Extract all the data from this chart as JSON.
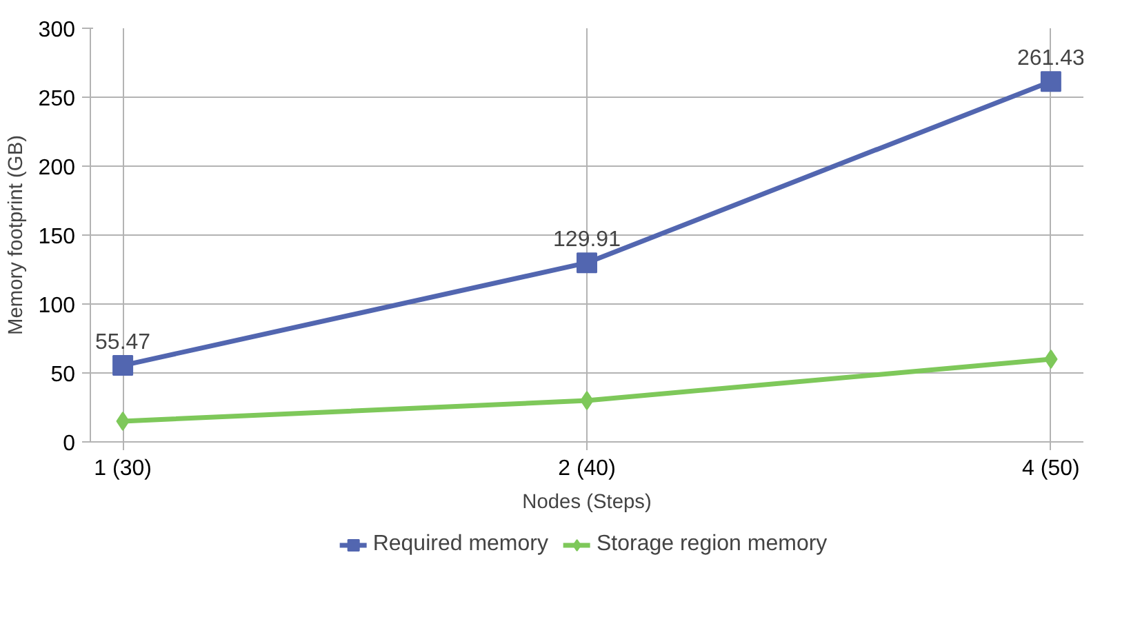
{
  "chart_data": {
    "type": "line",
    "xlabel": "Nodes (Steps)",
    "ylabel": "Memory footprint (GB)",
    "categories": [
      "1 (30)",
      "2 (40)",
      "4 (50)"
    ],
    "series": [
      {
        "name": "Required memory",
        "color": "#5266b0",
        "values": [
          55.47,
          129.91,
          261.43
        ],
        "marker": "square",
        "value_labels": [
          "55.47",
          "129.91",
          "261.43"
        ]
      },
      {
        "name": "Storage region memory",
        "color": "#7ec85a",
        "values": [
          15,
          30,
          60
        ],
        "marker": "diamond"
      }
    ],
    "ylim": [
      0,
      300
    ],
    "yticks": [
      0,
      50,
      100,
      150,
      200,
      250,
      300
    ],
    "grid": true,
    "legend": "bottom",
    "line_style": "solid"
  }
}
